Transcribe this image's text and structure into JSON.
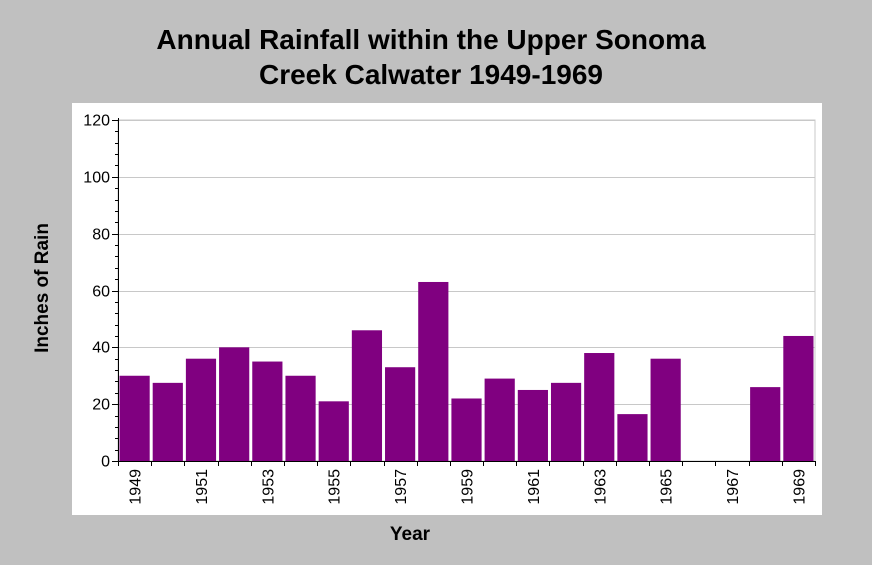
{
  "chart_data": {
    "type": "bar",
    "title_lines": [
      "Annual Rainfall within the Upper Sonoma",
      "Creek Calwater 1949-1969"
    ],
    "xlabel": "Year",
    "ylabel": "Inches of Rain",
    "ylim": [
      0,
      120
    ],
    "y_ticks": [
      0,
      20,
      40,
      60,
      80,
      100,
      120
    ],
    "grid": true,
    "categories": [
      "1949",
      "1950",
      "1951",
      "1952",
      "1953",
      "1954",
      "1955",
      "1956",
      "1957",
      "1958",
      "1959",
      "1960",
      "1961",
      "1962",
      "1963",
      "1964",
      "1965",
      "1966",
      "1967",
      "1968",
      "1969"
    ],
    "x_tick_labels": [
      "1949",
      "1951",
      "1953",
      "1955",
      "1957",
      "1959",
      "1961",
      "1963",
      "1965",
      "1967",
      "1969"
    ],
    "values": [
      30,
      27.5,
      36,
      40,
      35,
      30,
      21,
      46,
      33,
      63,
      22,
      29,
      25,
      27.5,
      38,
      16.5,
      36,
      null,
      null,
      26,
      44
    ],
    "bar_color": "#800080"
  }
}
